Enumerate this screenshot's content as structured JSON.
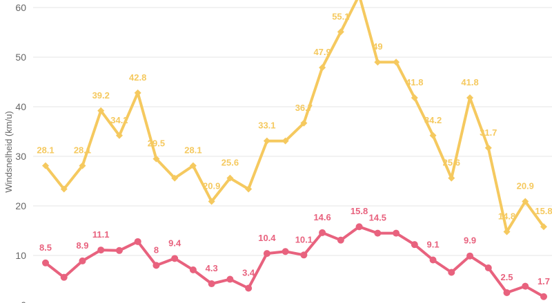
{
  "chart_data": {
    "type": "line",
    "ylabel": "Windsnelheid (km/u)",
    "ylim": [
      0,
      60
    ],
    "yticks": [
      0,
      10,
      20,
      30,
      40,
      50,
      60
    ],
    "grid": true,
    "series": [
      {
        "color": "#f5c95f",
        "marker": "diamond",
        "values": [
          28.1,
          23.4,
          28.1,
          39.2,
          34.2,
          42.8,
          29.5,
          25.6,
          28.1,
          20.9,
          25.6,
          23.4,
          33.1,
          33.1,
          36.7,
          47.9,
          55.1,
          62.5,
          49,
          49,
          41.8,
          34.2,
          25.6,
          41.8,
          31.7,
          14.8,
          20.9,
          15.8
        ],
        "labels": [
          "28.1",
          null,
          "28.1",
          "39.2",
          "34.2",
          "42.8",
          "29.5",
          null,
          "28.1",
          "20.9",
          "25.6",
          null,
          "33.1",
          null,
          "36.7",
          "47.9",
          "55.1",
          null,
          "49",
          null,
          "41.8",
          "34.2",
          "25.6",
          "41.8",
          "31.7",
          "14.8",
          "20.9",
          "15.8"
        ]
      },
      {
        "color": "#e8627e",
        "marker": "circle",
        "values": [
          8.5,
          5.6,
          8.9,
          11.1,
          11.0,
          12.8,
          8,
          9.4,
          7.1,
          4.3,
          5.2,
          3.4,
          10.4,
          10.8,
          10.1,
          14.6,
          13.1,
          15.8,
          14.5,
          14.5,
          12.2,
          9.1,
          6.6,
          9.9,
          7.5,
          2.5,
          3.8,
          1.7
        ],
        "labels": [
          "8.5",
          null,
          "8.9",
          "11.1",
          null,
          null,
          "8",
          "9.4",
          null,
          "4.3",
          null,
          "3.4",
          "10.4",
          null,
          "10.1",
          "14.6",
          null,
          "15.8",
          "14.5",
          null,
          null,
          "9.1",
          null,
          "9.9",
          null,
          "2.5",
          null,
          "1.7"
        ]
      }
    ]
  }
}
